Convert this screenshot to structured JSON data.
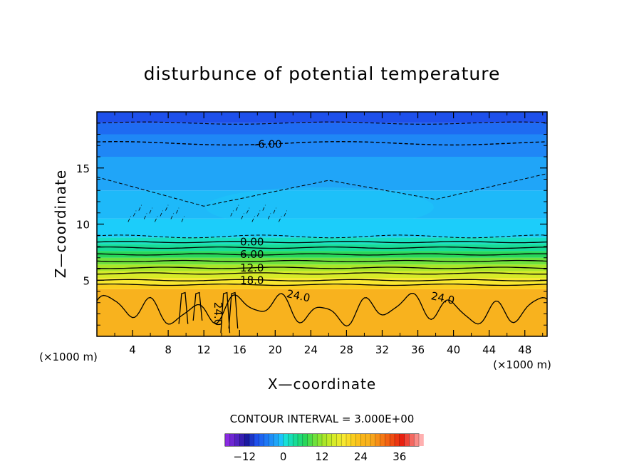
{
  "chart_data": {
    "type": "heatmap",
    "title": "disturbunce of potential temperature",
    "xlabel": "X—coordinate",
    "ylabel": "Z—coordinate",
    "x_unit": "(×1000 m)",
    "y_unit": "(×1000 m)",
    "xlim": [
      0,
      50.5
    ],
    "ylim": [
      0,
      20
    ],
    "x_ticks": [
      4,
      8,
      12,
      16,
      20,
      24,
      28,
      32,
      36,
      40,
      44,
      48
    ],
    "y_ticks": [
      5,
      10,
      15
    ],
    "contour_interval_label": "CONTOUR INTERVAL = 3.000E+00",
    "contour_labels": [
      {
        "text": "-6.00",
        "x": 19.2,
        "y": 17.1
      },
      {
        "text": "0.00",
        "x": 17.4,
        "y": 8.4
      },
      {
        "text": "6.00",
        "x": 17.4,
        "y": 7.3
      },
      {
        "text": "12.0",
        "x": 17.4,
        "y": 6.1
      },
      {
        "text": "18.0",
        "x": 17.4,
        "y": 5.0
      },
      {
        "text": "24.0",
        "x": 22.6,
        "y": 3.6
      },
      {
        "text": "24.0",
        "x": 38.8,
        "y": 3.4
      },
      {
        "text": "24.0",
        "x": 13.6,
        "y": 2.0,
        "vertical": true
      }
    ],
    "temperature_bands": [
      {
        "z": [
          0,
          4.2
        ],
        "value": 26
      },
      {
        "z": [
          4.2,
          4.6
        ],
        "value": 21
      },
      {
        "z": [
          4.6,
          5.2
        ],
        "value": 18
      },
      {
        "z": [
          5.2,
          5.8
        ],
        "value": 15
      },
      {
        "z": [
          5.8,
          6.4
        ],
        "value": 12
      },
      {
        "z": [
          6.4,
          7.0
        ],
        "value": 9
      },
      {
        "z": [
          7.0,
          7.6
        ],
        "value": 6
      },
      {
        "z": [
          7.6,
          8.2
        ],
        "value": 3
      },
      {
        "z": [
          8.2,
          8.8
        ],
        "value": 1
      },
      {
        "z": [
          8.8,
          10.5
        ],
        "value": -1
      },
      {
        "z": [
          10.5,
          13.0
        ],
        "value": -2
      },
      {
        "z": [
          13.0,
          16.0
        ],
        "value": -3
      },
      {
        "z": [
          16.0,
          18.0
        ],
        "value": -5
      },
      {
        "z": [
          18.0,
          19.0
        ],
        "value": -7
      },
      {
        "z": [
          19.0,
          20.0
        ],
        "value": -9
      }
    ],
    "colorbar": {
      "min": -18,
      "max": 42,
      "ticks": [
        -12,
        0,
        12,
        24,
        36
      ]
    }
  }
}
